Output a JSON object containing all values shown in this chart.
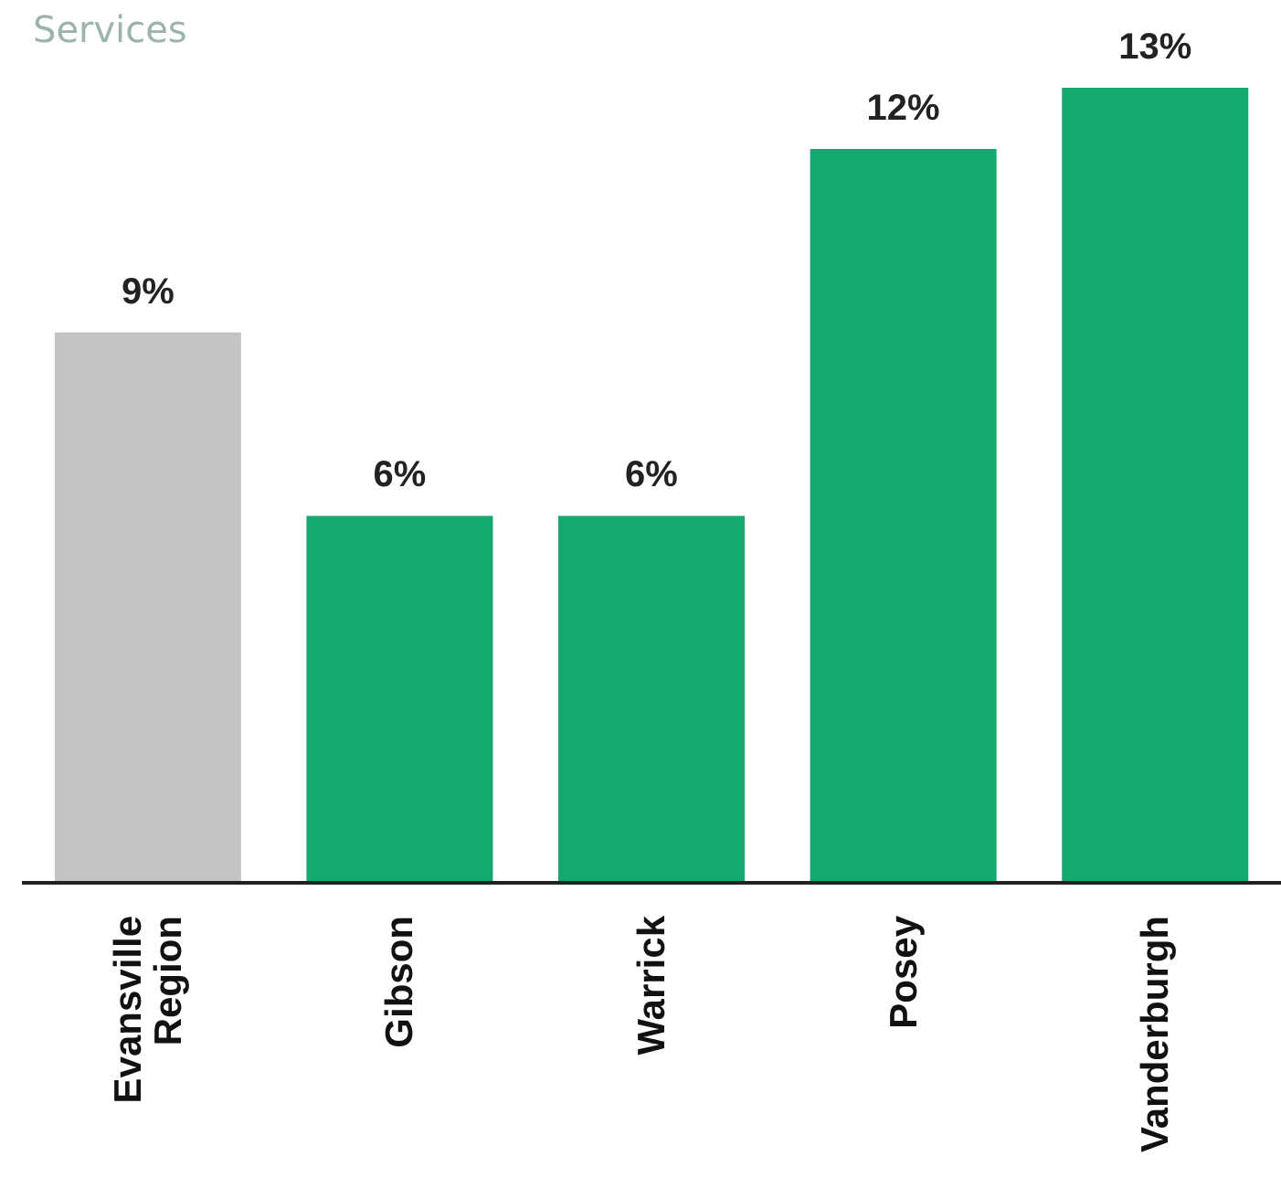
{
  "chart_data": {
    "type": "bar",
    "title": "Services",
    "categories": [
      "Evansville Region",
      "Gibson",
      "Warrick",
      "Posey",
      "Vanderburgh"
    ],
    "values": [
      9,
      6,
      6,
      12,
      13
    ],
    "colors": [
      "#c4c4c4",
      "#13a96f",
      "#13a96f",
      "#13a96f",
      "#13a96f"
    ],
    "value_labels": [
      "9%",
      "6%",
      "6%",
      "12%",
      "13%"
    ],
    "grid": false,
    "legend": false
  }
}
